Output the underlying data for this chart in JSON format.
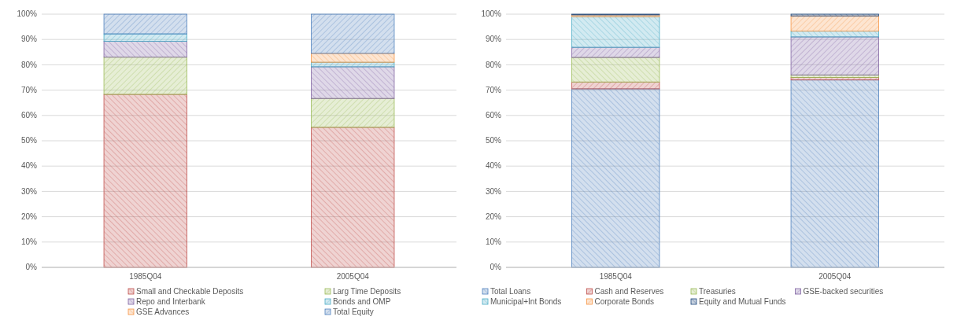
{
  "chart_data": [
    {
      "type": "bar",
      "stacked": true,
      "categories": [
        "1985Q04",
        "2005Q04"
      ],
      "ylim": [
        0,
        100
      ],
      "yticks": [
        {
          "value": 0,
          "label": "0%"
        },
        {
          "value": 10,
          "label": "10%"
        },
        {
          "value": 20,
          "label": "20%"
        },
        {
          "value": 30,
          "label": "30%"
        },
        {
          "value": 40,
          "label": "40%"
        },
        {
          "value": 50,
          "label": "50%"
        },
        {
          "value": 60,
          "label": "60%"
        },
        {
          "value": 70,
          "label": "70%"
        },
        {
          "value": 80,
          "label": "80%"
        },
        {
          "value": 90,
          "label": "90%"
        },
        {
          "value": 100,
          "label": "100%"
        }
      ],
      "grid": "y",
      "legend": "bottom",
      "series": [
        {
          "name": "Small and Checkable Deposits",
          "color": "#c0504d",
          "values": [
            68.3,
            55.3
          ]
        },
        {
          "name": "Larg Time Deposits",
          "color": "#9bbb59",
          "values": [
            14.7,
            11.4
          ]
        },
        {
          "name": "Repo and Interbank",
          "color": "#8064a2",
          "values": [
            6.3,
            12.5
          ]
        },
        {
          "name": "Bonds and OMP",
          "color": "#4bacc6",
          "values": [
            2.9,
            1.8
          ]
        },
        {
          "name": "GSE Advances",
          "color": "#f79646",
          "values": [
            0,
            3.5
          ]
        },
        {
          "name": "Total Equity",
          "color": "#4f81bd",
          "values": [
            7.8,
            15.5
          ]
        }
      ]
    },
    {
      "type": "bar",
      "stacked": true,
      "categories": [
        "1985Q04",
        "2005Q04"
      ],
      "ylim": [
        0,
        100
      ],
      "yticks": [
        {
          "value": 0,
          "label": "0%"
        },
        {
          "value": 10,
          "label": "10%"
        },
        {
          "value": 20,
          "label": "20%"
        },
        {
          "value": 30,
          "label": "30%"
        },
        {
          "value": 40,
          "label": "40%"
        },
        {
          "value": 50,
          "label": "50%"
        },
        {
          "value": 60,
          "label": "60%"
        },
        {
          "value": 70,
          "label": "70%"
        },
        {
          "value": 80,
          "label": "80%"
        },
        {
          "value": 90,
          "label": "90%"
        },
        {
          "value": 100,
          "label": "100%"
        }
      ],
      "grid": "y",
      "legend": "bottom",
      "series": [
        {
          "name": "Total Loans",
          "color": "#4f81bd",
          "values": [
            70.5,
            74
          ]
        },
        {
          "name": "Cash and Reserves",
          "color": "#c0504d",
          "values": [
            2.7,
            1
          ]
        },
        {
          "name": "Treasuries",
          "color": "#9bbb59",
          "values": [
            9.7,
            1
          ]
        },
        {
          "name": "GSE-backed securities",
          "color": "#8064a2",
          "values": [
            4,
            15
          ]
        },
        {
          "name": "Municipal+Int Bonds",
          "color": "#4bacc6",
          "values": [
            12.1,
            2.3
          ]
        },
        {
          "name": "Corporate Bonds",
          "color": "#f79646",
          "values": [
            0.7,
            6
          ]
        },
        {
          "name": "Equity and Mutual Funds",
          "color": "#1f497d",
          "values": [
            0.3,
            0.7
          ]
        }
      ]
    }
  ]
}
